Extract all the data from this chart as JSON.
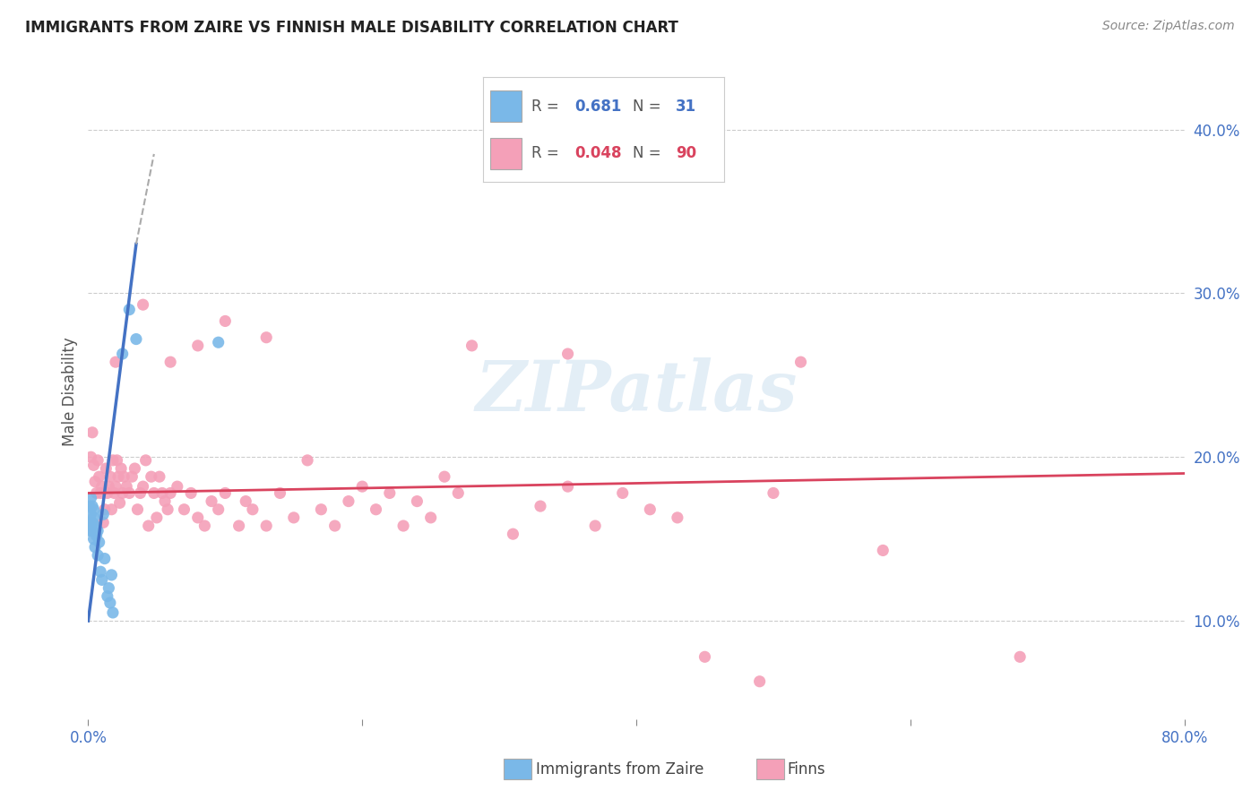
{
  "title": "IMMIGRANTS FROM ZAIRE VS FINNISH MALE DISABILITY CORRELATION CHART",
  "source": "Source: ZipAtlas.com",
  "ylabel": "Male Disability",
  "xlim": [
    0.0,
    0.8
  ],
  "ylim": [
    0.04,
    0.44
  ],
  "blue_color": "#7ab8e8",
  "pink_color": "#f4a0b8",
  "line_blue": "#4472c4",
  "line_pink": "#d9435e",
  "trendline_gray": "#aaaaaa",
  "grid_color": "#cccccc",
  "watermark": "ZIPatlas",
  "blue_points": [
    [
      0.001,
      0.155
    ],
    [
      0.001,
      0.17
    ],
    [
      0.001,
      0.16
    ],
    [
      0.002,
      0.175
    ],
    [
      0.002,
      0.165
    ],
    [
      0.002,
      0.158
    ],
    [
      0.003,
      0.16
    ],
    [
      0.003,
      0.17
    ],
    [
      0.003,
      0.155
    ],
    [
      0.004,
      0.15
    ],
    [
      0.004,
      0.163
    ],
    [
      0.004,
      0.168
    ],
    [
      0.005,
      0.145
    ],
    [
      0.005,
      0.158
    ],
    [
      0.006,
      0.152
    ],
    [
      0.007,
      0.14
    ],
    [
      0.007,
      0.155
    ],
    [
      0.008,
      0.148
    ],
    [
      0.009,
      0.13
    ],
    [
      0.01,
      0.125
    ],
    [
      0.011,
      0.165
    ],
    [
      0.012,
      0.138
    ],
    [
      0.014,
      0.115
    ],
    [
      0.015,
      0.12
    ],
    [
      0.016,
      0.111
    ],
    [
      0.017,
      0.128
    ],
    [
      0.018,
      0.105
    ],
    [
      0.025,
      0.263
    ],
    [
      0.03,
      0.29
    ],
    [
      0.035,
      0.272
    ],
    [
      0.095,
      0.27
    ]
  ],
  "pink_points": [
    [
      0.002,
      0.2
    ],
    [
      0.003,
      0.215
    ],
    [
      0.004,
      0.195
    ],
    [
      0.005,
      0.185
    ],
    [
      0.006,
      0.178
    ],
    [
      0.007,
      0.198
    ],
    [
      0.008,
      0.188
    ],
    [
      0.009,
      0.178
    ],
    [
      0.01,
      0.182
    ],
    [
      0.011,
      0.16
    ],
    [
      0.012,
      0.168
    ],
    [
      0.013,
      0.193
    ],
    [
      0.014,
      0.178
    ],
    [
      0.015,
      0.182
    ],
    [
      0.016,
      0.188
    ],
    [
      0.017,
      0.168
    ],
    [
      0.018,
      0.198
    ],
    [
      0.019,
      0.178
    ],
    [
      0.02,
      0.182
    ],
    [
      0.021,
      0.198
    ],
    [
      0.022,
      0.188
    ],
    [
      0.023,
      0.172
    ],
    [
      0.024,
      0.193
    ],
    [
      0.025,
      0.178
    ],
    [
      0.026,
      0.188
    ],
    [
      0.028,
      0.182
    ],
    [
      0.03,
      0.178
    ],
    [
      0.032,
      0.188
    ],
    [
      0.034,
      0.193
    ],
    [
      0.036,
      0.168
    ],
    [
      0.038,
      0.178
    ],
    [
      0.04,
      0.182
    ],
    [
      0.042,
      0.198
    ],
    [
      0.044,
      0.158
    ],
    [
      0.046,
      0.188
    ],
    [
      0.048,
      0.178
    ],
    [
      0.05,
      0.163
    ],
    [
      0.052,
      0.188
    ],
    [
      0.054,
      0.178
    ],
    [
      0.056,
      0.173
    ],
    [
      0.058,
      0.168
    ],
    [
      0.06,
      0.178
    ],
    [
      0.065,
      0.182
    ],
    [
      0.07,
      0.168
    ],
    [
      0.075,
      0.178
    ],
    [
      0.08,
      0.163
    ],
    [
      0.085,
      0.158
    ],
    [
      0.09,
      0.173
    ],
    [
      0.095,
      0.168
    ],
    [
      0.1,
      0.178
    ],
    [
      0.11,
      0.158
    ],
    [
      0.115,
      0.173
    ],
    [
      0.12,
      0.168
    ],
    [
      0.13,
      0.158
    ],
    [
      0.14,
      0.178
    ],
    [
      0.15,
      0.163
    ],
    [
      0.16,
      0.198
    ],
    [
      0.17,
      0.168
    ],
    [
      0.18,
      0.158
    ],
    [
      0.19,
      0.173
    ],
    [
      0.2,
      0.182
    ],
    [
      0.21,
      0.168
    ],
    [
      0.22,
      0.178
    ],
    [
      0.23,
      0.158
    ],
    [
      0.24,
      0.173
    ],
    [
      0.25,
      0.163
    ],
    [
      0.26,
      0.188
    ],
    [
      0.27,
      0.178
    ],
    [
      0.31,
      0.153
    ],
    [
      0.33,
      0.17
    ],
    [
      0.35,
      0.182
    ],
    [
      0.37,
      0.158
    ],
    [
      0.39,
      0.178
    ],
    [
      0.41,
      0.168
    ],
    [
      0.43,
      0.163
    ],
    [
      0.5,
      0.178
    ],
    [
      0.02,
      0.258
    ],
    [
      0.04,
      0.293
    ],
    [
      0.06,
      0.258
    ],
    [
      0.08,
      0.268
    ],
    [
      0.1,
      0.283
    ],
    [
      0.13,
      0.273
    ],
    [
      0.28,
      0.268
    ],
    [
      0.35,
      0.263
    ],
    [
      0.52,
      0.258
    ],
    [
      0.58,
      0.143
    ],
    [
      0.45,
      0.078
    ],
    [
      0.49,
      0.063
    ],
    [
      0.68,
      0.078
    ]
  ],
  "blue_trendline_solid": [
    [
      0.0,
      0.1
    ],
    [
      0.035,
      0.33
    ]
  ],
  "blue_trendline_dash": [
    [
      0.035,
      0.33
    ],
    [
      0.048,
      0.385
    ]
  ],
  "pink_trendline": [
    [
      0.0,
      0.178
    ],
    [
      0.8,
      0.19
    ]
  ]
}
